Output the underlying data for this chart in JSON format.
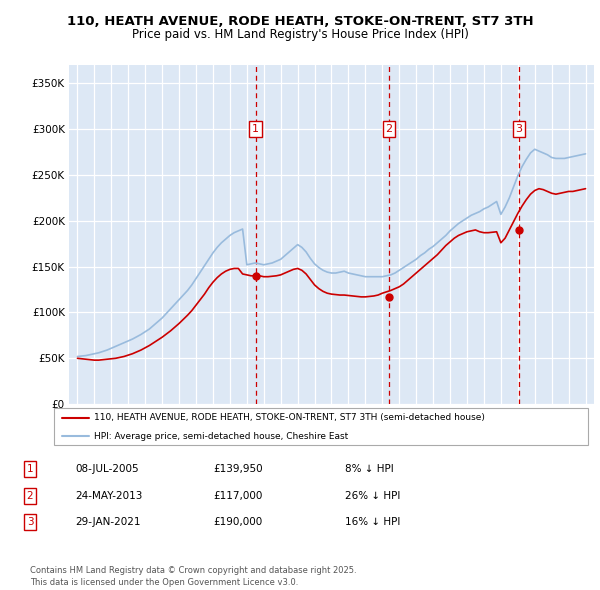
{
  "title": "110, HEATH AVENUE, RODE HEATH, STOKE-ON-TRENT, ST7 3TH",
  "subtitle": "Price paid vs. HM Land Registry's House Price Index (HPI)",
  "legend_line1": "110, HEATH AVENUE, RODE HEATH, STOKE-ON-TRENT, ST7 3TH (semi-detached house)",
  "legend_line2": "HPI: Average price, semi-detached house, Cheshire East",
  "transactions": [
    {
      "num": 1,
      "date": "08-JUL-2005",
      "price": 139950,
      "pct": "8%",
      "dir": "↓"
    },
    {
      "num": 2,
      "date": "24-MAY-2013",
      "price": 117000,
      "pct": "26%",
      "dir": "↓"
    },
    {
      "num": 3,
      "date": "29-JAN-2021",
      "price": 190000,
      "pct": "16%",
      "dir": "↓"
    }
  ],
  "transaction_years": [
    2005.52,
    2013.39,
    2021.08
  ],
  "transaction_prices": [
    139950,
    117000,
    190000
  ],
  "vline_color": "#cc0000",
  "hpi_color": "#99bbdd",
  "price_color": "#cc0000",
  "bg_color": "#dde8f5",
  "footnote": "Contains HM Land Registry data © Crown copyright and database right 2025.\nThis data is licensed under the Open Government Licence v3.0.",
  "ylim": [
    0,
    370000
  ],
  "yticks": [
    0,
    50000,
    100000,
    150000,
    200000,
    250000,
    300000,
    350000
  ],
  "xlim_start": 1994.5,
  "xlim_end": 2025.5,
  "hpi_years": [
    1995,
    1995.25,
    1995.5,
    1995.75,
    1996,
    1996.25,
    1996.5,
    1996.75,
    1997,
    1997.25,
    1997.5,
    1997.75,
    1998,
    1998.25,
    1998.5,
    1998.75,
    1999,
    1999.25,
    1999.5,
    1999.75,
    2000,
    2000.25,
    2000.5,
    2000.75,
    2001,
    2001.25,
    2001.5,
    2001.75,
    2002,
    2002.25,
    2002.5,
    2002.75,
    2003,
    2003.25,
    2003.5,
    2003.75,
    2004,
    2004.25,
    2004.5,
    2004.75,
    2005,
    2005.25,
    2005.5,
    2005.75,
    2006,
    2006.25,
    2006.5,
    2006.75,
    2007,
    2007.25,
    2007.5,
    2007.75,
    2008,
    2008.25,
    2008.5,
    2008.75,
    2009,
    2009.25,
    2009.5,
    2009.75,
    2010,
    2010.25,
    2010.5,
    2010.75,
    2011,
    2011.25,
    2011.5,
    2011.75,
    2012,
    2012.25,
    2012.5,
    2012.75,
    2013,
    2013.25,
    2013.5,
    2013.75,
    2014,
    2014.25,
    2014.5,
    2014.75,
    2015,
    2015.25,
    2015.5,
    2015.75,
    2016,
    2016.25,
    2016.5,
    2016.75,
    2017,
    2017.25,
    2017.5,
    2017.75,
    2018,
    2018.25,
    2018.5,
    2018.75,
    2019,
    2019.25,
    2019.5,
    2019.75,
    2020,
    2020.25,
    2020.5,
    2020.75,
    2021,
    2021.25,
    2021.5,
    2021.75,
    2022,
    2022.25,
    2022.5,
    2022.75,
    2023,
    2023.25,
    2023.5,
    2023.75,
    2024,
    2024.25,
    2024.5,
    2024.75,
    2025
  ],
  "hpi_values": [
    52000,
    52500,
    53000,
    54000,
    55000,
    56000,
    57500,
    59000,
    61000,
    63000,
    65000,
    67000,
    69000,
    71000,
    73500,
    76000,
    79000,
    82000,
    86000,
    90000,
    94000,
    99000,
    104000,
    109000,
    114000,
    119000,
    124000,
    130000,
    137000,
    144000,
    151000,
    158000,
    165000,
    171000,
    176000,
    180000,
    184000,
    187000,
    189000,
    191000,
    152000,
    153000,
    154000,
    153000,
    152000,
    153000,
    154000,
    156000,
    158000,
    162000,
    166000,
    170000,
    174000,
    171000,
    166000,
    159000,
    153000,
    149000,
    146000,
    144000,
    143000,
    143000,
    144000,
    145000,
    143000,
    142000,
    141000,
    140000,
    139000,
    139000,
    139000,
    139000,
    139000,
    140000,
    141000,
    143000,
    146000,
    149000,
    152000,
    155000,
    158000,
    162000,
    165000,
    169000,
    172000,
    176000,
    180000,
    184000,
    189000,
    193000,
    197000,
    200000,
    203000,
    206000,
    208000,
    210000,
    213000,
    215000,
    218000,
    221000,
    207000,
    215000,
    225000,
    237000,
    249000,
    259000,
    267000,
    274000,
    278000,
    276000,
    274000,
    272000,
    269000,
    268000,
    268000,
    268000,
    269000,
    270000,
    271000,
    272000,
    273000
  ],
  "price_years": [
    1995,
    1995.25,
    1995.5,
    1995.75,
    1996,
    1996.25,
    1996.5,
    1996.75,
    1997,
    1997.25,
    1997.5,
    1997.75,
    1998,
    1998.25,
    1998.5,
    1998.75,
    1999,
    1999.25,
    1999.5,
    1999.75,
    2000,
    2000.25,
    2000.5,
    2000.75,
    2001,
    2001.25,
    2001.5,
    2001.75,
    2002,
    2002.25,
    2002.5,
    2002.75,
    2003,
    2003.25,
    2003.5,
    2003.75,
    2004,
    2004.25,
    2004.5,
    2004.75,
    2005,
    2005.25,
    2005.5,
    2005.75,
    2006,
    2006.25,
    2006.5,
    2006.75,
    2007,
    2007.25,
    2007.5,
    2007.75,
    2008,
    2008.25,
    2008.5,
    2008.75,
    2009,
    2009.25,
    2009.5,
    2009.75,
    2010,
    2010.25,
    2010.5,
    2010.75,
    2011,
    2011.25,
    2011.5,
    2011.75,
    2012,
    2012.25,
    2012.5,
    2012.75,
    2013,
    2013.25,
    2013.5,
    2013.75,
    2014,
    2014.25,
    2014.5,
    2014.75,
    2015,
    2015.25,
    2015.5,
    2015.75,
    2016,
    2016.25,
    2016.5,
    2016.75,
    2017,
    2017.25,
    2017.5,
    2017.75,
    2018,
    2018.25,
    2018.5,
    2018.75,
    2019,
    2019.25,
    2019.5,
    2019.75,
    2020,
    2020.25,
    2020.5,
    2020.75,
    2021,
    2021.25,
    2021.5,
    2021.75,
    2022,
    2022.25,
    2022.5,
    2022.75,
    2023,
    2023.25,
    2023.5,
    2023.75,
    2024,
    2024.25,
    2024.5,
    2024.75,
    2025
  ],
  "price_values": [
    50000,
    49500,
    49000,
    48500,
    48000,
    48000,
    48500,
    49000,
    49500,
    50000,
    51000,
    52000,
    53500,
    55000,
    57000,
    59000,
    61500,
    64000,
    67000,
    70000,
    73000,
    76500,
    80000,
    84000,
    88000,
    92500,
    97000,
    102000,
    108000,
    114000,
    120000,
    127000,
    133000,
    138000,
    142000,
    145000,
    147000,
    148000,
    148000,
    142000,
    141000,
    140000,
    139950,
    140000,
    139000,
    139000,
    139500,
    140000,
    141000,
    143000,
    145000,
    147000,
    148000,
    146000,
    142000,
    136000,
    130000,
    126000,
    123000,
    121000,
    120000,
    119500,
    119000,
    119000,
    118500,
    118000,
    117500,
    117000,
    117000,
    117500,
    118000,
    119000,
    121000,
    122500,
    124000,
    126000,
    128000,
    131000,
    135000,
    139000,
    143000,
    147000,
    151000,
    155000,
    159000,
    163000,
    168000,
    173000,
    177000,
    181000,
    184000,
    186000,
    188000,
    189000,
    190000,
    188000,
    187000,
    187000,
    187500,
    188000,
    176000,
    181000,
    190000,
    199000,
    208000,
    216000,
    223000,
    229000,
    233000,
    235000,
    234000,
    232000,
    230000,
    229000,
    230000,
    231000,
    232000,
    232000,
    233000,
    234000,
    235000
  ]
}
